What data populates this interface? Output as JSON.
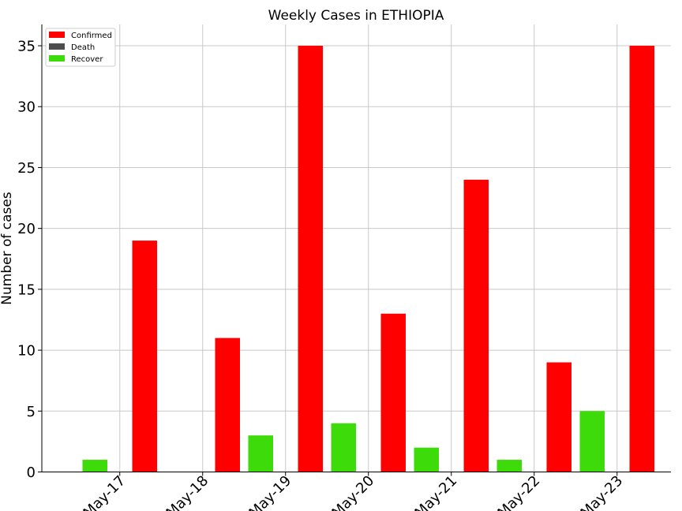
{
  "chart_data": {
    "type": "bar",
    "title": "Weekly Cases in ETHIOPIA",
    "xlabel": "",
    "ylabel": "Number of cases",
    "categories": [
      "May-17",
      "May-18",
      "May-19",
      "May-20",
      "May-21",
      "May-22",
      "May-23"
    ],
    "series": [
      {
        "name": "Confirmed",
        "color": "#ff0000",
        "values": [
          19,
          11,
          35,
          13,
          24,
          9,
          35
        ]
      },
      {
        "name": "Death",
        "color": "#4d4d4d",
        "values": [
          0,
          0,
          0,
          0,
          0,
          0,
          0
        ]
      },
      {
        "name": "Recover",
        "color": "#3ddb0a",
        "values": [
          1,
          0,
          3,
          4,
          2,
          1,
          5
        ]
      }
    ],
    "ylim": [
      0,
      36.75
    ],
    "yticks": [
      0,
      5,
      10,
      15,
      20,
      25,
      30,
      35
    ],
    "grid": true,
    "legend": "top-left"
  }
}
